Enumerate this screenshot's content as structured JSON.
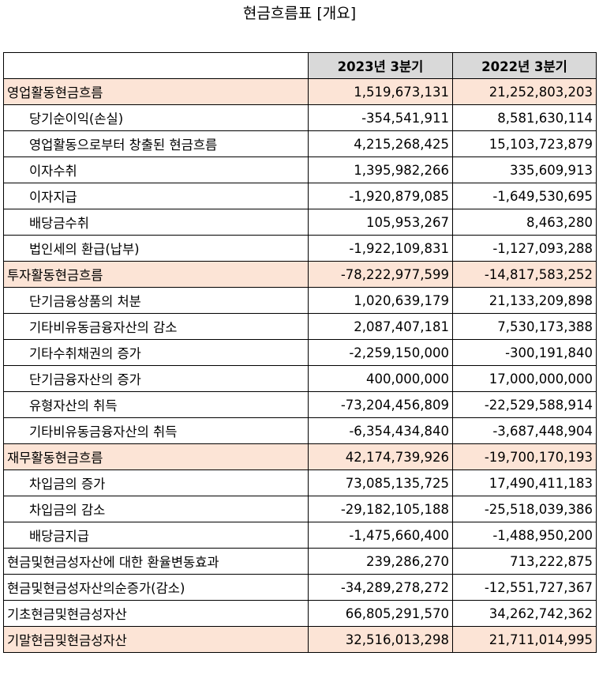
{
  "title": "현금흐름표 [개요]",
  "columns": [
    "",
    "2023년 3분기",
    "2022년 3분기"
  ],
  "rows": [
    {
      "label": "영업활동현금흐름",
      "v2023": "1,519,673,131",
      "v2022": "21,252,803,203",
      "section": true,
      "indent": false
    },
    {
      "label": "당기순이익(손실)",
      "v2023": "-354,541,911",
      "v2022": "8,581,630,114",
      "section": false,
      "indent": true
    },
    {
      "label": "영업활동으로부터 창출된 현금흐름",
      "v2023": "4,215,268,425",
      "v2022": "15,103,723,879",
      "section": false,
      "indent": true
    },
    {
      "label": "이자수취",
      "v2023": "1,395,982,266",
      "v2022": "335,609,913",
      "section": false,
      "indent": true
    },
    {
      "label": "이자지급",
      "v2023": "-1,920,879,085",
      "v2022": "-1,649,530,695",
      "section": false,
      "indent": true
    },
    {
      "label": "배당금수취",
      "v2023": "105,953,267",
      "v2022": "8,463,280",
      "section": false,
      "indent": true
    },
    {
      "label": "법인세의 환급(납부)",
      "v2023": "-1,922,109,831",
      "v2022": "-1,127,093,288",
      "section": false,
      "indent": true
    },
    {
      "label": "투자활동현금흐름",
      "v2023": "-78,222,977,599",
      "v2022": "-14,817,583,252",
      "section": true,
      "indent": false
    },
    {
      "label": "단기금융상품의 처분",
      "v2023": "1,020,639,179",
      "v2022": "21,133,209,898",
      "section": false,
      "indent": true
    },
    {
      "label": "기타비유동금융자산의 감소",
      "v2023": "2,087,407,181",
      "v2022": "7,530,173,388",
      "section": false,
      "indent": true
    },
    {
      "label": "기타수취채권의 증가",
      "v2023": "-2,259,150,000",
      "v2022": "-300,191,840",
      "section": false,
      "indent": true
    },
    {
      "label": "단기금융자산의 증가",
      "v2023": "400,000,000",
      "v2022": "17,000,000,000",
      "section": false,
      "indent": true
    },
    {
      "label": "유형자산의 취득",
      "v2023": "-73,204,456,809",
      "v2022": "-22,529,588,914",
      "section": false,
      "indent": true
    },
    {
      "label": "기타비유동금융자산의 취득",
      "v2023": "-6,354,434,840",
      "v2022": "-3,687,448,904",
      "section": false,
      "indent": true
    },
    {
      "label": "재무활동현금흐름",
      "v2023": "42,174,739,926",
      "v2022": "-19,700,170,193",
      "section": true,
      "indent": false
    },
    {
      "label": "차입금의 증가",
      "v2023": "73,085,135,725",
      "v2022": "17,490,411,183",
      "section": false,
      "indent": true
    },
    {
      "label": "차입금의 감소",
      "v2023": "-29,182,105,188",
      "v2022": "-25,518,039,386",
      "section": false,
      "indent": true
    },
    {
      "label": "배당금지급",
      "v2023": "-1,475,660,400",
      "v2022": "-1,488,950,200",
      "section": false,
      "indent": true
    },
    {
      "label": "현금및현금성자산에 대한 환율변동효과",
      "v2023": "239,286,270",
      "v2022": "713,222,875",
      "section": false,
      "indent": false
    },
    {
      "label": "현금및현금성자산의순증가(감소)",
      "v2023": "-34,289,278,272",
      "v2022": "-12,551,727,367",
      "section": false,
      "indent": false
    },
    {
      "label": "기초현금및현금성자산",
      "v2023": "66,805,291,570",
      "v2022": "34,262,742,362",
      "section": false,
      "indent": false
    },
    {
      "label": "기말현금및현금성자산",
      "v2023": "32,516,013,298",
      "v2022": "21,711,014,995",
      "section": true,
      "indent": false
    }
  ]
}
